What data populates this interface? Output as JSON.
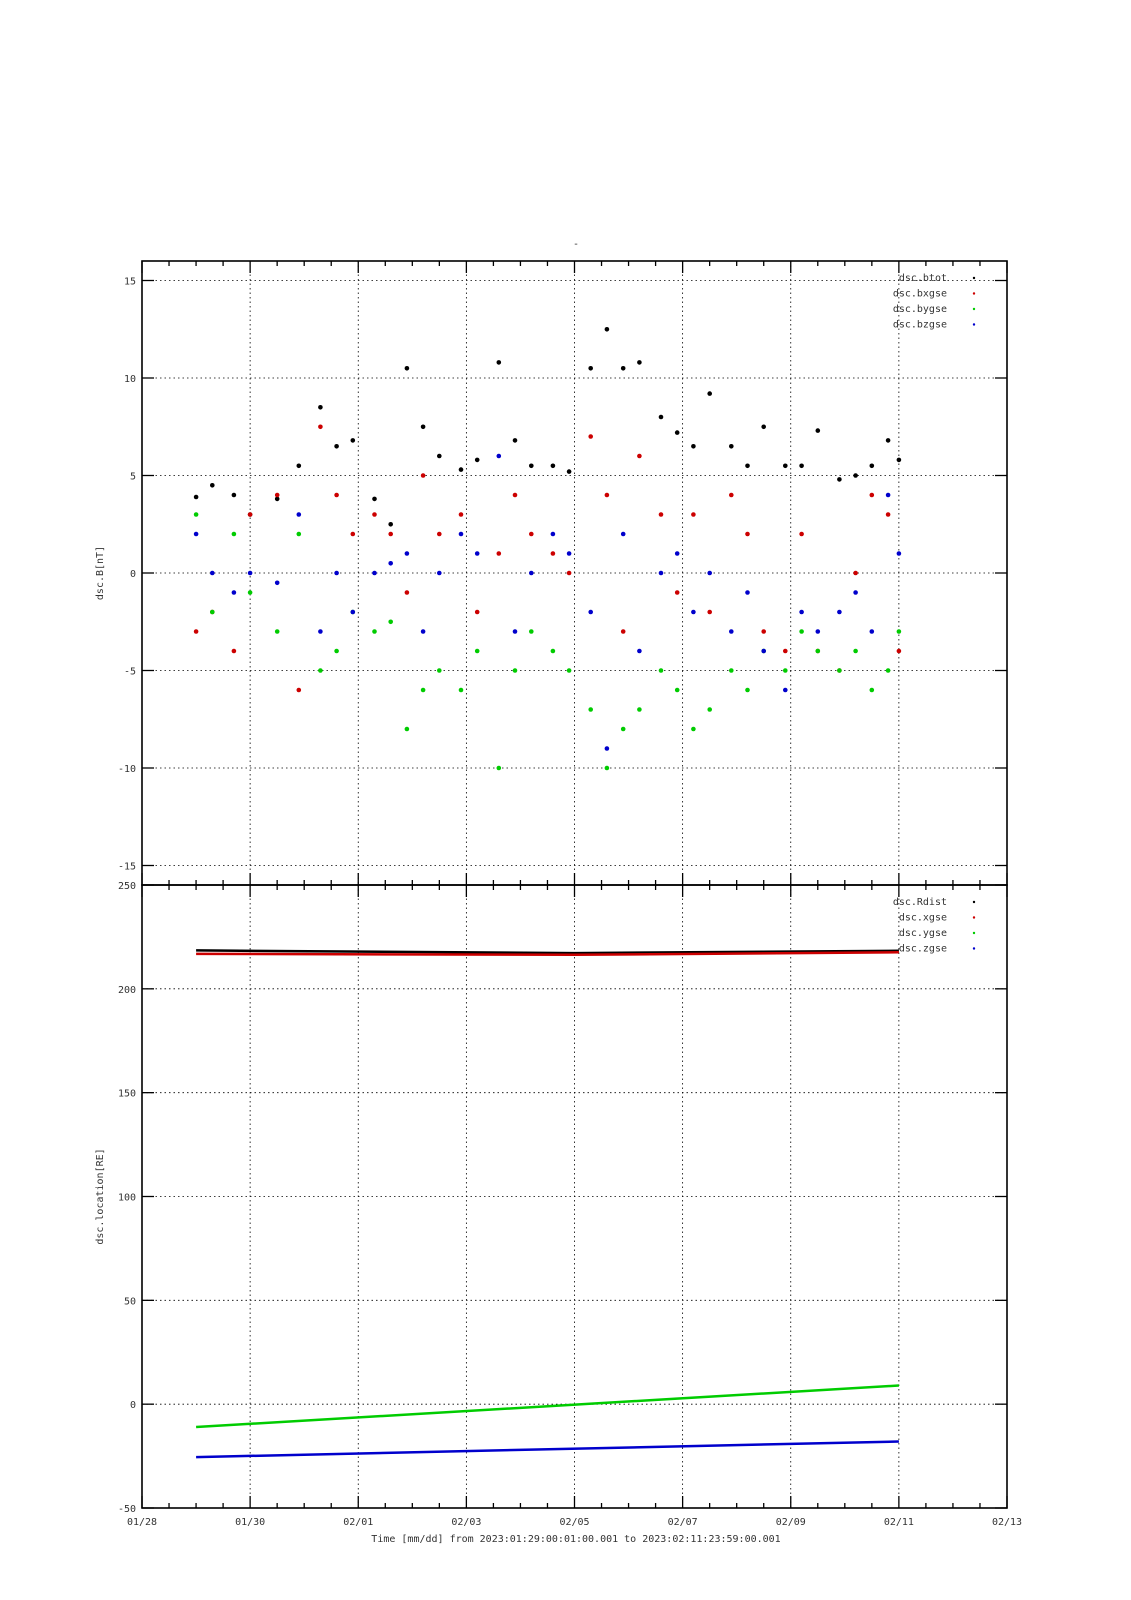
{
  "figure": {
    "top_title": "-",
    "xlabel": "Time [mm/dd]  from 2023:01:29:00:01:00.001  to  2023:02:11:23:59:00.001",
    "x_ticks": [
      "01/28",
      "01/30",
      "02/01",
      "02/03",
      "02/05",
      "02/07",
      "02/09",
      "02/11",
      "02/13"
    ]
  },
  "chart_data": [
    {
      "type": "scatter",
      "title": "",
      "ylabel": "dsc.B[nT]",
      "xlim": [
        0,
        16
      ],
      "ylim": [
        -16,
        16
      ],
      "y_ticks": [
        15,
        10,
        5,
        0,
        -5,
        -10,
        -15
      ],
      "x_unit": "days since 01/28 00:00",
      "grid": true,
      "legend_position": "top-right",
      "series": [
        {
          "name": "dsc.btot",
          "color": "#000000",
          "x": [
            1.0,
            1.3,
            1.7,
            2.0,
            2.5,
            2.9,
            3.3,
            3.6,
            3.9,
            4.3,
            4.6,
            4.9,
            5.2,
            5.5,
            5.9,
            6.2,
            6.6,
            6.9,
            7.2,
            7.6,
            7.9,
            8.3,
            8.6,
            8.9,
            9.2,
            9.6,
            9.9,
            10.2,
            10.5,
            10.9,
            11.2,
            11.5,
            11.9,
            12.2,
            12.5,
            12.9,
            13.2,
            13.5,
            13.8,
            14.0
          ],
          "values": [
            3.9,
            4.5,
            4.0,
            3.0,
            3.8,
            5.5,
            8.5,
            6.5,
            6.8,
            3.8,
            2.5,
            10.5,
            7.5,
            6.0,
            5.3,
            5.8,
            10.8,
            6.8,
            5.5,
            5.5,
            5.2,
            10.5,
            12.5,
            10.5,
            10.8,
            8.0,
            7.2,
            6.5,
            9.2,
            6.5,
            5.5,
            7.5,
            5.5,
            5.5,
            7.3,
            4.8,
            5.0,
            5.5,
            6.8,
            5.8
          ]
        },
        {
          "name": "dsc.bxgse",
          "color": "#cc0000",
          "x": [
            1.0,
            1.3,
            1.7,
            2.0,
            2.5,
            2.9,
            3.3,
            3.6,
            3.9,
            4.3,
            4.6,
            4.9,
            5.2,
            5.5,
            5.9,
            6.2,
            6.6,
            6.9,
            7.2,
            7.6,
            7.9,
            8.3,
            8.6,
            8.9,
            9.2,
            9.6,
            9.9,
            10.2,
            10.5,
            10.9,
            11.2,
            11.5,
            11.9,
            12.2,
            12.5,
            12.9,
            13.2,
            13.5,
            13.8,
            14.0
          ],
          "values": [
            -3.0,
            -2.0,
            -4.0,
            3.0,
            4.0,
            -6.0,
            7.5,
            4.0,
            2.0,
            3.0,
            2.0,
            -1.0,
            5.0,
            2.0,
            3.0,
            -2.0,
            1.0,
            4.0,
            2.0,
            1.0,
            0.0,
            7.0,
            4.0,
            -3.0,
            6.0,
            3.0,
            -1.0,
            3.0,
            -2.0,
            4.0,
            2.0,
            -3.0,
            -4.0,
            2.0,
            -4.0,
            -5.0,
            0.0,
            4.0,
            3.0,
            -4.0
          ]
        },
        {
          "name": "dsc.bygse",
          "color": "#00cc00",
          "x": [
            1.0,
            1.3,
            1.7,
            2.0,
            2.5,
            2.9,
            3.3,
            3.6,
            3.9,
            4.3,
            4.6,
            4.9,
            5.2,
            5.5,
            5.9,
            6.2,
            6.6,
            6.9,
            7.2,
            7.6,
            7.9,
            8.3,
            8.6,
            8.9,
            9.2,
            9.6,
            9.9,
            10.2,
            10.5,
            10.9,
            11.2,
            11.5,
            11.9,
            12.2,
            12.5,
            12.9,
            13.2,
            13.5,
            13.8,
            14.0
          ],
          "values": [
            3.0,
            -2.0,
            2.0,
            -1.0,
            -3.0,
            2.0,
            -5.0,
            -4.0,
            -2.0,
            -3.0,
            -2.5,
            -8.0,
            -6.0,
            -5.0,
            -6.0,
            -4.0,
            -10.0,
            -5.0,
            -3.0,
            -4.0,
            -5.0,
            -7.0,
            -10.0,
            -8.0,
            -7.0,
            -5.0,
            -6.0,
            -8.0,
            -7.0,
            -5.0,
            -6.0,
            -4.0,
            -5.0,
            -3.0,
            -4.0,
            -5.0,
            -4.0,
            -6.0,
            -5.0,
            -3.0
          ]
        },
        {
          "name": "dsc.bzgse",
          "color": "#0000cc",
          "x": [
            1.0,
            1.3,
            1.7,
            2.0,
            2.5,
            2.9,
            3.3,
            3.6,
            3.9,
            4.3,
            4.6,
            4.9,
            5.2,
            5.5,
            5.9,
            6.2,
            6.6,
            6.9,
            7.2,
            7.6,
            7.9,
            8.3,
            8.6,
            8.9,
            9.2,
            9.6,
            9.9,
            10.2,
            10.5,
            10.9,
            11.2,
            11.5,
            11.9,
            12.2,
            12.5,
            12.9,
            13.2,
            13.5,
            13.8,
            14.0
          ],
          "values": [
            2.0,
            0.0,
            -1.0,
            0.0,
            -0.5,
            3.0,
            -3.0,
            0.0,
            -2.0,
            0.0,
            0.5,
            1.0,
            -3.0,
            0.0,
            2.0,
            1.0,
            6.0,
            -3.0,
            0.0,
            2.0,
            1.0,
            -2.0,
            -9.0,
            2.0,
            -4.0,
            0.0,
            1.0,
            -2.0,
            0.0,
            -3.0,
            -1.0,
            -4.0,
            -6.0,
            -2.0,
            -3.0,
            -2.0,
            -1.0,
            -3.0,
            4.0,
            1.0
          ]
        }
      ]
    },
    {
      "type": "line",
      "title": "",
      "ylabel": "dsc.location[RE]",
      "xlim": [
        0,
        16
      ],
      "ylim": [
        -50,
        250
      ],
      "y_ticks": [
        250,
        200,
        150,
        100,
        50,
        0,
        -50
      ],
      "x_unit": "days since 01/28 00:00",
      "grid": true,
      "legend_position": "top-right",
      "series": [
        {
          "name": "dsc.Rdist",
          "color": "#000000",
          "x": [
            1.0,
            8.0,
            14.0
          ],
          "values": [
            218.5,
            217.2,
            218.3
          ]
        },
        {
          "name": "dsc.xgse",
          "color": "#cc0000",
          "x": [
            1.0,
            8.0,
            14.0
          ],
          "values": [
            216.8,
            216.4,
            217.6
          ]
        },
        {
          "name": "dsc.ygse",
          "color": "#00cc00",
          "x": [
            1.0,
            14.0
          ],
          "values": [
            -11.0,
            9.0
          ]
        },
        {
          "name": "dsc.zgse",
          "color": "#0000cc",
          "x": [
            1.0,
            14.0
          ],
          "values": [
            -25.5,
            -18.0
          ]
        }
      ]
    }
  ]
}
